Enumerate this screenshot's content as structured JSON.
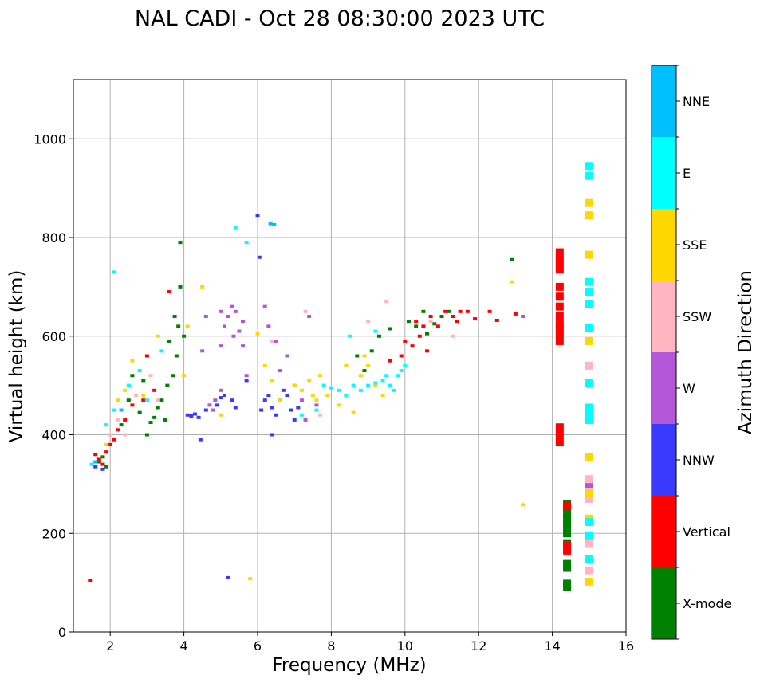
{
  "chart_data": {
    "type": "scatter",
    "title": "NAL CADI - Oct 28 08:30:00 2023 UTC",
    "xlabel": "Frequency (MHz)",
    "ylabel": "Virtual height (km)",
    "xlim": [
      1,
      16
    ],
    "ylim": [
      0,
      1120
    ],
    "xticks": [
      2,
      4,
      6,
      8,
      10,
      12,
      14,
      16
    ],
    "yticks": [
      0,
      200,
      400,
      600,
      800,
      1000
    ],
    "grid": true,
    "colorbar": {
      "label": "Azimuth Direction",
      "position": "right",
      "categories": [
        {
          "name": "X-mode",
          "color": "#008000"
        },
        {
          "name": "Vertical",
          "color": "#ff0000"
        },
        {
          "name": "NNW",
          "color": "#3a3aff"
        },
        {
          "name": "W",
          "color": "#b257d8"
        },
        {
          "name": "SSW",
          "color": "#ffb6c1"
        },
        {
          "name": "SSE",
          "color": "#ffd700"
        },
        {
          "name": "E",
          "color": "#00ffff"
        },
        {
          "name": "NNE",
          "color": "#00bfff"
        }
      ]
    },
    "series": [
      {
        "name": "X-mode",
        "points": [
          [
            1.7,
            345
          ],
          [
            1.8,
            355
          ],
          [
            1.9,
            335
          ],
          [
            2.3,
            420
          ],
          [
            2.5,
            470
          ],
          [
            2.6,
            520
          ],
          [
            2.8,
            445
          ],
          [
            2.9,
            510
          ],
          [
            3.0,
            400
          ],
          [
            3.1,
            425
          ],
          [
            3.2,
            435
          ],
          [
            3.3,
            455
          ],
          [
            3.4,
            470
          ],
          [
            3.5,
            430
          ],
          [
            3.55,
            500
          ],
          [
            3.6,
            590
          ],
          [
            3.7,
            520
          ],
          [
            3.75,
            640
          ],
          [
            3.8,
            560
          ],
          [
            3.9,
            700
          ],
          [
            3.85,
            620
          ],
          [
            4.0,
            600
          ],
          [
            3.9,
            790
          ],
          [
            8.7,
            560
          ],
          [
            8.9,
            530
          ],
          [
            9.1,
            570
          ],
          [
            9.3,
            600
          ],
          [
            9.6,
            615
          ],
          [
            10.1,
            630
          ],
          [
            10.3,
            620
          ],
          [
            10.5,
            650
          ],
          [
            10.6,
            605
          ],
          [
            10.8,
            625
          ],
          [
            11.0,
            640
          ],
          [
            11.2,
            650
          ],
          [
            12.9,
            755
          ],
          [
            14.4,
            260
          ],
          [
            14.4,
            250
          ],
          [
            14.4,
            240
          ],
          [
            14.4,
            230
          ],
          [
            14.4,
            220
          ],
          [
            14.4,
            210
          ],
          [
            14.4,
            200
          ],
          [
            14.4,
            138
          ],
          [
            14.4,
            130
          ],
          [
            14.4,
            98
          ],
          [
            14.4,
            92
          ],
          [
            14.4,
            180
          ]
        ]
      },
      {
        "name": "Vertical",
        "points": [
          [
            1.45,
            105
          ],
          [
            1.6,
            360
          ],
          [
            1.7,
            350
          ],
          [
            1.8,
            340
          ],
          [
            1.9,
            365
          ],
          [
            2.0,
            380
          ],
          [
            2.1,
            390
          ],
          [
            2.2,
            410
          ],
          [
            2.4,
            430
          ],
          [
            2.6,
            460
          ],
          [
            2.9,
            470
          ],
          [
            3.0,
            560
          ],
          [
            3.2,
            490
          ],
          [
            3.6,
            690
          ],
          [
            9.6,
            550
          ],
          [
            9.9,
            560
          ],
          [
            10.0,
            590
          ],
          [
            10.2,
            580
          ],
          [
            10.3,
            630
          ],
          [
            10.4,
            600
          ],
          [
            10.5,
            620
          ],
          [
            10.6,
            570
          ],
          [
            10.7,
            640
          ],
          [
            10.9,
            620
          ],
          [
            11.1,
            650
          ],
          [
            11.3,
            640
          ],
          [
            11.4,
            630
          ],
          [
            11.5,
            650
          ],
          [
            11.7,
            650
          ],
          [
            11.9,
            635
          ],
          [
            12.3,
            650
          ],
          [
            12.5,
            632
          ],
          [
            13.0,
            645
          ],
          [
            14.2,
            770
          ],
          [
            14.2,
            755
          ],
          [
            14.2,
            745
          ],
          [
            14.2,
            735
          ],
          [
            14.2,
            700
          ],
          [
            14.2,
            680
          ],
          [
            14.2,
            660
          ],
          [
            14.2,
            640
          ],
          [
            14.2,
            625
          ],
          [
            14.2,
            615
          ],
          [
            14.2,
            605
          ],
          [
            14.2,
            590
          ],
          [
            14.2,
            415
          ],
          [
            14.2,
            400
          ],
          [
            14.2,
            385
          ],
          [
            14.4,
            175
          ],
          [
            14.4,
            165
          ],
          [
            14.4,
            255
          ]
        ]
      },
      {
        "name": "NNW",
        "points": [
          [
            1.6,
            335
          ],
          [
            1.8,
            330
          ],
          [
            4.1,
            440
          ],
          [
            4.2,
            438
          ],
          [
            4.3,
            442
          ],
          [
            4.4,
            435
          ],
          [
            4.45,
            390
          ],
          [
            4.6,
            450
          ],
          [
            4.9,
            460
          ],
          [
            5.0,
            475
          ],
          [
            5.1,
            480
          ],
          [
            5.3,
            470
          ],
          [
            5.4,
            455
          ],
          [
            5.7,
            510
          ],
          [
            6.1,
            450
          ],
          [
            6.2,
            470
          ],
          [
            6.3,
            480
          ],
          [
            6.4,
            455
          ],
          [
            6.5,
            440
          ],
          [
            6.6,
            470
          ],
          [
            6.7,
            490
          ],
          [
            6.8,
            480
          ],
          [
            6.9,
            450
          ],
          [
            7.0,
            430
          ],
          [
            7.1,
            455
          ],
          [
            6.05,
            760
          ],
          [
            6.0,
            845
          ],
          [
            5.2,
            110
          ],
          [
            6.4,
            400
          ]
        ]
      },
      {
        "name": "W",
        "points": [
          [
            4.7,
            460
          ],
          [
            4.8,
            450
          ],
          [
            4.85,
            470
          ],
          [
            5.0,
            490
          ],
          [
            5.1,
            620
          ],
          [
            5.2,
            640
          ],
          [
            5.3,
            660
          ],
          [
            5.35,
            600
          ],
          [
            5.4,
            650
          ],
          [
            5.5,
            610
          ],
          [
            5.6,
            630
          ],
          [
            4.6,
            640
          ],
          [
            5.0,
            650
          ],
          [
            4.5,
            570
          ],
          [
            5.0,
            580
          ],
          [
            5.6,
            580
          ],
          [
            5.7,
            520
          ],
          [
            6.3,
            620
          ],
          [
            6.5,
            590
          ],
          [
            6.6,
            530
          ],
          [
            6.8,
            560
          ],
          [
            7.0,
            500
          ],
          [
            7.2,
            470
          ],
          [
            7.3,
            430
          ],
          [
            7.4,
            640
          ],
          [
            7.6,
            460
          ],
          [
            13.2,
            640
          ],
          [
            15.0,
            300
          ],
          [
            6.2,
            660
          ]
        ]
      },
      {
        "name": "SSW",
        "points": [
          [
            2.0,
            400
          ],
          [
            2.2,
            430
          ],
          [
            2.4,
            400
          ],
          [
            2.7,
            480
          ],
          [
            3.1,
            520
          ],
          [
            3.3,
            470
          ],
          [
            7.3,
            650
          ],
          [
            9.0,
            630
          ],
          [
            9.5,
            670
          ],
          [
            10.7,
            630
          ],
          [
            11.3,
            600
          ],
          [
            15.0,
            540
          ],
          [
            15.0,
            180
          ],
          [
            15.0,
            125
          ],
          [
            15.0,
            270
          ],
          [
            15.0,
            310
          ],
          [
            6.4,
            590
          ],
          [
            7.7,
            440
          ]
        ]
      },
      {
        "name": "SSE",
        "points": [
          [
            1.9,
            380
          ],
          [
            2.2,
            470
          ],
          [
            2.4,
            490
          ],
          [
            2.6,
            550
          ],
          [
            2.9,
            480
          ],
          [
            3.3,
            600
          ],
          [
            4.1,
            620
          ],
          [
            4.5,
            700
          ],
          [
            5.0,
            440
          ],
          [
            5.8,
            108
          ],
          [
            6.0,
            605
          ],
          [
            6.2,
            540
          ],
          [
            6.4,
            510
          ],
          [
            6.6,
            470
          ],
          [
            7.0,
            500
          ],
          [
            7.2,
            490
          ],
          [
            7.4,
            510
          ],
          [
            7.5,
            480
          ],
          [
            7.6,
            470
          ],
          [
            7.7,
            520
          ],
          [
            7.8,
            500
          ],
          [
            7.9,
            480
          ],
          [
            8.2,
            460
          ],
          [
            8.4,
            540
          ],
          [
            8.6,
            445
          ],
          [
            8.8,
            520
          ],
          [
            8.9,
            560
          ],
          [
            9.0,
            540
          ],
          [
            9.2,
            500
          ],
          [
            9.4,
            480
          ],
          [
            13.2,
            258
          ],
          [
            12.9,
            710
          ],
          [
            15.0,
            870
          ],
          [
            15.0,
            845
          ],
          [
            15.0,
            765
          ],
          [
            15.0,
            590
          ],
          [
            15.0,
            355
          ],
          [
            15.0,
            282
          ],
          [
            15.0,
            230
          ],
          [
            15.0,
            102
          ],
          [
            4.0,
            520
          ]
        ]
      },
      {
        "name": "E",
        "points": [
          [
            1.5,
            340
          ],
          [
            1.9,
            420
          ],
          [
            2.1,
            450
          ],
          [
            2.5,
            500
          ],
          [
            2.8,
            530
          ],
          [
            3.0,
            470
          ],
          [
            3.4,
            570
          ],
          [
            5.4,
            820
          ],
          [
            5.7,
            790
          ],
          [
            7.2,
            440
          ],
          [
            7.6,
            450
          ],
          [
            7.8,
            500
          ],
          [
            8.0,
            495
          ],
          [
            8.2,
            490
          ],
          [
            8.4,
            480
          ],
          [
            8.6,
            500
          ],
          [
            8.8,
            490
          ],
          [
            9.0,
            500
          ],
          [
            9.2,
            505
          ],
          [
            9.4,
            510
          ],
          [
            9.5,
            520
          ],
          [
            9.6,
            500
          ],
          [
            9.7,
            490
          ],
          [
            9.8,
            520
          ],
          [
            9.9,
            530
          ],
          [
            10.0,
            540
          ],
          [
            8.5,
            600
          ],
          [
            9.2,
            610
          ],
          [
            15.0,
            945
          ],
          [
            15.0,
            925
          ],
          [
            15.0,
            710
          ],
          [
            15.0,
            690
          ],
          [
            15.0,
            665
          ],
          [
            15.0,
            617
          ],
          [
            15.0,
            505
          ],
          [
            15.0,
            455
          ],
          [
            15.0,
            440
          ],
          [
            15.0,
            430
          ],
          [
            15.0,
            223
          ],
          [
            15.0,
            196
          ],
          [
            15.0,
            148
          ],
          [
            2.1,
            730
          ]
        ]
      },
      {
        "name": "NNE",
        "points": [
          [
            6.35,
            828
          ],
          [
            6.45,
            826
          ],
          [
            1.6,
            345
          ],
          [
            2.3,
            450
          ]
        ]
      }
    ]
  }
}
